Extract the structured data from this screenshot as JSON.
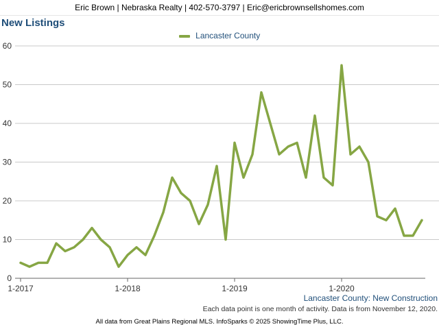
{
  "header": {
    "text": "Eric Brown | Nebraska Realty | 402-570-3797 | Eric@ericbrownsellshomes.com"
  },
  "colors": {
    "series": "#86a644",
    "title": "#1f4e79",
    "grid": "#c8c8c8"
  },
  "chart_data": {
    "type": "line",
    "title": "New Listings",
    "subtitle": "Lancaster County: New Construction",
    "note": "Each data point is one month of activity. Data is from November 12, 2020.",
    "footer": "All data from Great Plains Regional MLS. InfoSparks © 2025 ShowingTime Plus, LLC.",
    "ylim": [
      0,
      60
    ],
    "yticks": [
      0,
      10,
      20,
      30,
      40,
      50,
      60
    ],
    "x_tick_labels": [
      {
        "index": 0,
        "label": "1-2017"
      },
      {
        "index": 12,
        "label": "1-2018"
      },
      {
        "index": 24,
        "label": "1-2019"
      },
      {
        "index": 36,
        "label": "1-2020"
      }
    ],
    "legend_position": "top-center",
    "grid": true,
    "series": [
      {
        "name": "Lancaster County",
        "values": [
          4,
          3,
          4,
          4,
          9,
          7,
          8,
          10,
          13,
          10,
          8,
          3,
          6,
          8,
          6,
          11,
          17,
          26,
          22,
          20,
          14,
          19,
          29,
          10,
          35,
          26,
          32,
          48,
          40,
          32,
          34,
          35,
          26,
          42,
          26,
          24,
          55,
          32,
          34,
          30,
          16,
          15,
          18,
          11,
          11,
          15
        ]
      }
    ]
  }
}
